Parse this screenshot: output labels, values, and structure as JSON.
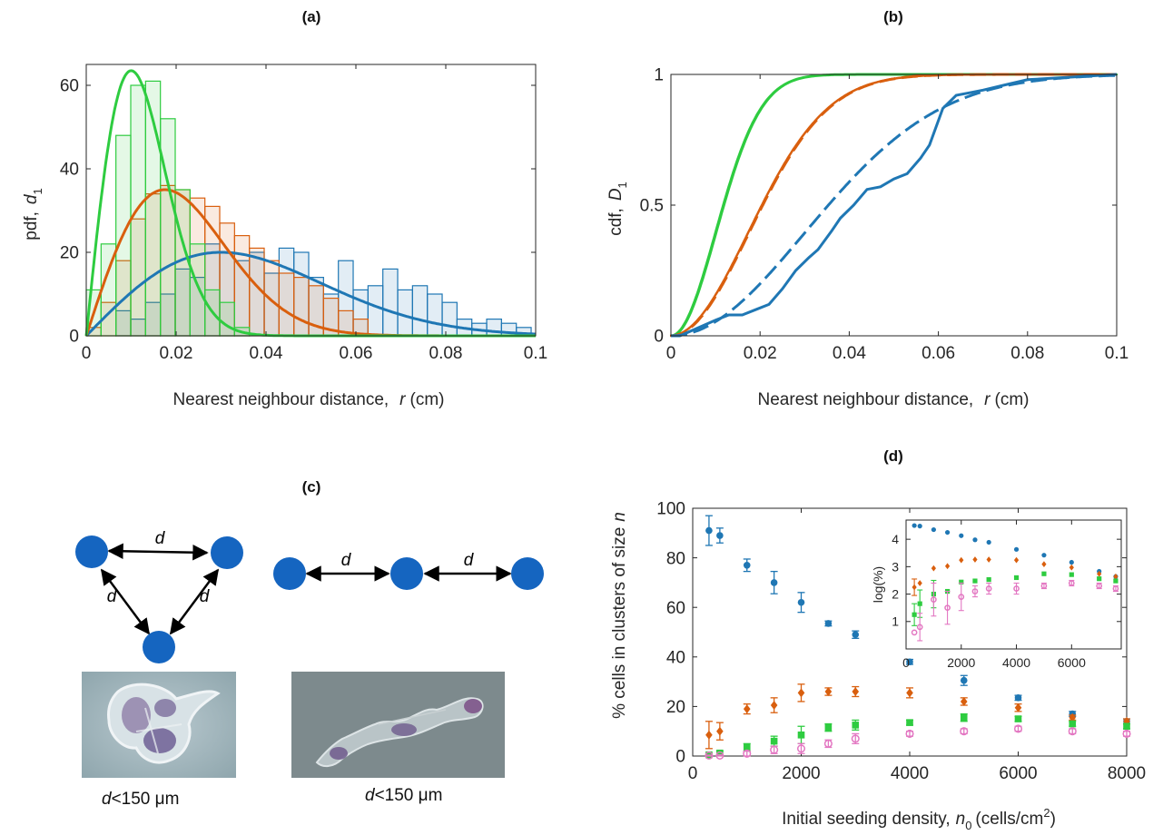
{
  "colors": {
    "blue": "#1f77b4",
    "orange": "#d95f0e",
    "green": "#2ecc40",
    "pink": "#e377c2",
    "node": "#1565c0"
  },
  "chart_data": [
    {
      "type": "bar",
      "panel": "(a)",
      "title": "(a)",
      "xlabel_main": "Nearest neighbour distance,",
      "xlabel_var": "r",
      "xlabel_unit": "(cm)",
      "ylabel_main": "pdf,",
      "ylabel_var": "d",
      "ylabel_sub": "1",
      "xlim": [
        0,
        0.1
      ],
      "ylim": [
        0,
        65
      ],
      "xticks": [
        0,
        0.02,
        0.04,
        0.06,
        0.08,
        0.1
      ],
      "xtick_labels": [
        "0",
        "0.02",
        "0.04",
        "0.06",
        "0.08",
        "0.1"
      ],
      "yticks": [
        0,
        20,
        40,
        60
      ],
      "ytick_labels": [
        "0",
        "20",
        "40",
        "60"
      ],
      "series": [
        {
          "color_key": "blue",
          "bin_start": 0.0,
          "bin_width": 0.0033,
          "values": [
            0,
            0,
            6,
            4,
            8,
            10,
            16,
            14,
            22,
            20,
            18,
            20,
            15,
            21,
            20,
            14,
            10,
            18,
            11,
            12,
            16,
            11,
            12,
            10,
            8,
            4,
            3,
            4,
            3,
            2
          ]
        },
        {
          "color_key": "orange",
          "bin_start": 0.0,
          "bin_width": 0.0033,
          "values": [
            2,
            8,
            18,
            28,
            34,
            36,
            35,
            33,
            31,
            27,
            24,
            21,
            18,
            15,
            14,
            12,
            9,
            6,
            4
          ]
        },
        {
          "color_key": "green",
          "bin_start": 0.0,
          "bin_width": 0.0033,
          "values": [
            11,
            22,
            48,
            60,
            61,
            52,
            35,
            22,
            11,
            8,
            2
          ]
        }
      ],
      "curves": [
        {
          "color_key": "blue",
          "peak_x": 0.03,
          "peak_y": 20
        },
        {
          "color_key": "orange",
          "peak_x": 0.0175,
          "peak_y": 35
        },
        {
          "color_key": "green",
          "peak_x": 0.01,
          "peak_y": 63.5
        }
      ]
    },
    {
      "type": "line",
      "panel": "(b)",
      "title": "(b)",
      "xlabel_main": "Nearest neighbour distance,",
      "xlabel_var": "r",
      "xlabel_unit": "(cm)",
      "ylabel_main": "cdf,",
      "ylabel_var": "D",
      "ylabel_sub": "1",
      "xlim": [
        0,
        0.1
      ],
      "ylim": [
        0,
        1
      ],
      "xticks": [
        0,
        0.02,
        0.04,
        0.06,
        0.08,
        0.1
      ],
      "xtick_labels": [
        "0",
        "0.02",
        "0.04",
        "0.06",
        "0.08",
        "0.1"
      ],
      "yticks": [
        0,
        0.5,
        1
      ],
      "ytick_labels": [
        "0",
        "0.5",
        "1"
      ],
      "series": [
        {
          "color_key": "green",
          "sigma": 0.01
        },
        {
          "color_key": "orange",
          "sigma": 0.0175
        },
        {
          "color_key": "blue",
          "sigma": 0.03
        }
      ],
      "empirical_blue": {
        "x": [
          0.002,
          0.006,
          0.01,
          0.013,
          0.016,
          0.019,
          0.022,
          0.025,
          0.028,
          0.031,
          0.033,
          0.036,
          0.038,
          0.041,
          0.044,
          0.047,
          0.05,
          0.053,
          0.056,
          0.058,
          0.061,
          0.064,
          0.067,
          0.07,
          0.075,
          0.08,
          0.09,
          0.1
        ],
        "y": [
          0,
          0.03,
          0.06,
          0.08,
          0.08,
          0.1,
          0.12,
          0.18,
          0.25,
          0.3,
          0.33,
          0.4,
          0.45,
          0.5,
          0.56,
          0.57,
          0.6,
          0.62,
          0.68,
          0.73,
          0.87,
          0.92,
          0.93,
          0.94,
          0.96,
          0.98,
          0.99,
          1.0
        ]
      }
    },
    {
      "type": "scatter",
      "panel": "(d)",
      "title": "(d)",
      "xlabel_main": "Initial seeding density,",
      "xlabel_var": "n",
      "xlabel_sub": "0",
      "xlabel_unit": "(cells/cm",
      "xlabel_sup": "2",
      "xlabel_end": ")",
      "ylabel_main": "% cells in clusters of size",
      "ylabel_var": "n",
      "xlim": [
        0,
        8000
      ],
      "ylim": [
        0,
        100
      ],
      "xticks": [
        0,
        2000,
        4000,
        6000,
        8000
      ],
      "xtick_labels": [
        "0",
        "2000",
        "4000",
        "6000",
        "8000"
      ],
      "yticks": [
        0,
        20,
        40,
        60,
        80,
        100
      ],
      "ytick_labels": [
        "0",
        "20",
        "40",
        "60",
        "80",
        "100"
      ],
      "x": [
        300,
        500,
        1000,
        1500,
        2000,
        2500,
        3000,
        4000,
        5000,
        6000,
        7000,
        8000
      ],
      "series": [
        {
          "color_key": "blue",
          "marker": "circle",
          "values": [
            91,
            89,
            77,
            70,
            62,
            53.5,
            49,
            38,
            30.5,
            23.5,
            17,
            14
          ],
          "errors": [
            6,
            3,
            2.5,
            4.5,
            4,
            1,
            1.5,
            1,
            2,
            1,
            1,
            1
          ]
        },
        {
          "color_key": "orange",
          "marker": "diamond",
          "values": [
            8.5,
            10,
            19,
            20.5,
            25.5,
            26,
            26,
            25.5,
            22,
            19.5,
            15.5,
            14
          ],
          "errors": [
            5.5,
            3.5,
            2,
            3,
            3.5,
            1.5,
            2,
            2,
            1.5,
            1.5,
            1,
            1
          ]
        },
        {
          "color_key": "green",
          "marker": "square",
          "values": [
            0.5,
            1.2,
            3.5,
            6,
            8.5,
            11.5,
            12.5,
            13.5,
            15.5,
            15,
            13,
            12
          ],
          "errors": [
            0.5,
            0.8,
            1.5,
            2,
            3.5,
            1.5,
            2,
            1,
            1.5,
            1,
            1,
            1
          ]
        },
        {
          "color_key": "pink",
          "marker": "open-circle",
          "values": [
            0.2,
            0.2,
            1,
            2.5,
            3,
            5,
            7,
            9,
            10,
            11,
            10,
            9
          ],
          "errors": [
            0.2,
            0.3,
            1,
            1.5,
            2,
            1.5,
            2,
            1,
            1,
            1,
            1,
            1
          ]
        }
      ],
      "inset": {
        "ylabel": "log(%)",
        "xlim": [
          0,
          7800
        ],
        "ylim": [
          0,
          4.7
        ],
        "xticks": [
          0,
          2000,
          4000,
          6000
        ],
        "xtick_labels": [
          "0",
          "2000",
          "4000",
          "6000"
        ],
        "yticks": [
          1,
          2,
          3,
          4
        ],
        "ytick_labels": [
          "1",
          "2",
          "3",
          "4"
        ],
        "x": [
          300,
          500,
          1000,
          1500,
          2000,
          2500,
          3000,
          4000,
          5000,
          6000,
          7000,
          7600
        ],
        "series": [
          {
            "color_key": "blue",
            "values": [
              4.5,
              4.48,
              4.35,
              4.25,
              4.13,
              3.98,
              3.89,
              3.63,
              3.42,
              3.16,
              2.83,
              2.64
            ],
            "errors": [
              0,
              0,
              0,
              0,
              0,
              0,
              0,
              0,
              0,
              0,
              0,
              0
            ]
          },
          {
            "color_key": "orange",
            "values": [
              2.25,
              2.4,
              2.94,
              3.02,
              3.24,
              3.26,
              3.26,
              3.24,
              3.09,
              2.97,
              2.74,
              2.64
            ],
            "errors": [
              0.3,
              0,
              0,
              0,
              0,
              0,
              0,
              0,
              0,
              0,
              0,
              0
            ]
          },
          {
            "color_key": "green",
            "values": [
              1.25,
              1.65,
              2.0,
              2.1,
              2.44,
              2.48,
              2.53,
              2.6,
              2.74,
              2.71,
              2.56,
              2.48
            ],
            "errors": [
              0.4,
              0.5,
              0.5,
              0,
              0,
              0,
              0,
              0,
              0,
              0,
              0,
              0
            ]
          },
          {
            "color_key": "pink",
            "values": [
              0.6,
              0.8,
              1.8,
              1.5,
              1.9,
              2.1,
              2.2,
              2.2,
              2.3,
              2.4,
              2.3,
              2.2
            ],
            "errors": [
              0,
              0.5,
              0.6,
              0.6,
              0.5,
              0.2,
              0.2,
              0.2,
              0.1,
              0.1,
              0.1,
              0.1
            ]
          }
        ]
      }
    }
  ],
  "panel_c": {
    "title": "(c)",
    "edge_label": "d",
    "caption_left_var": "d",
    "caption_left_rest": "<150 μm",
    "caption_right_var": "d",
    "caption_right_rest": "<150 μm"
  }
}
